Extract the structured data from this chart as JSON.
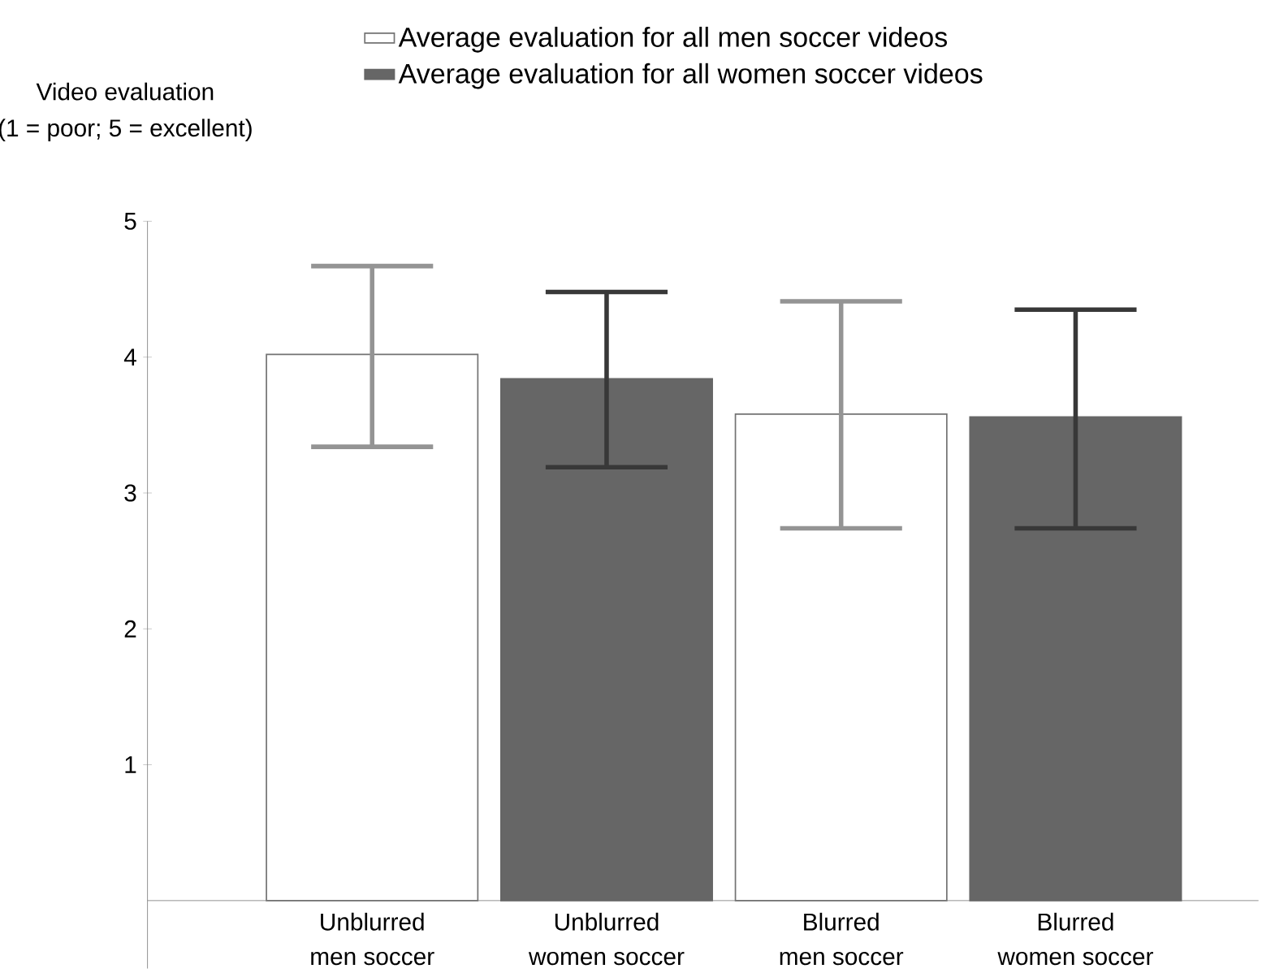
{
  "chart_data": {
    "type": "bar",
    "ylabel": "Video evaluation\n(1 = poor; 5 = excellent)",
    "categories": [
      "Unblurred\nmen soccer",
      "Unblurred\nwomen soccer",
      "Blurred\nmen soccer",
      "Blurred\nwomen soccer"
    ],
    "series": [
      {
        "name": "Average evaluation for all men soccer videos",
        "color": "#ffffff",
        "values": [
          4.02,
          null,
          3.58,
          null
        ],
        "errors": [
          [
            3.34,
            4.67
          ],
          null,
          [
            2.74,
            4.41
          ],
          null
        ]
      },
      {
        "name": "Average evaluation for all women soccer videos",
        "color": "#666666",
        "values": [
          null,
          3.84,
          null,
          3.56
        ],
        "errors": [
          null,
          [
            3.19,
            4.48
          ],
          null,
          [
            2.74,
            4.35
          ]
        ]
      }
    ],
    "ylim": [
      -0.5,
      5
    ],
    "yticks": [
      1,
      2,
      3,
      4,
      5
    ],
    "grid": false,
    "legend": "top"
  }
}
